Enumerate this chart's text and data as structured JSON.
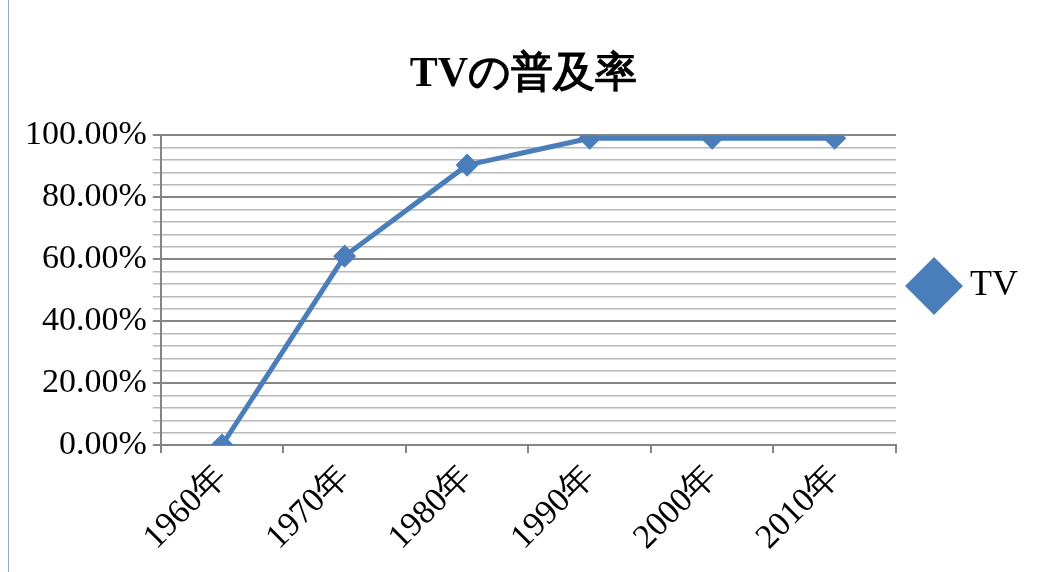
{
  "chart_data": {
    "type": "line",
    "title": "TVの普及率",
    "categories": [
      "1960年",
      "1970年",
      "1980年",
      "1990年",
      "2000年",
      "2010年"
    ],
    "series": [
      {
        "name": "TV",
        "color": "#4a7ebb",
        "values": [
          0,
          61,
          90.4,
          99.1,
          99.1,
          99.1
        ]
      }
    ],
    "ylim": [
      0,
      100
    ],
    "yticks": [
      {
        "value": 0,
        "label": "0.00%"
      },
      {
        "value": 4,
        "label": null
      },
      {
        "value": 8,
        "label": null
      },
      {
        "value": 12,
        "label": null
      },
      {
        "value": 16,
        "label": null
      },
      {
        "value": 20,
        "label": "20.00%"
      },
      {
        "value": 24,
        "label": null
      },
      {
        "value": 28,
        "label": null
      },
      {
        "value": 32,
        "label": null
      },
      {
        "value": 36,
        "label": null
      },
      {
        "value": 40,
        "label": "40.00%"
      },
      {
        "value": 44,
        "label": null
      },
      {
        "value": 48,
        "label": null
      },
      {
        "value": 52,
        "label": null
      },
      {
        "value": 56,
        "label": null
      },
      {
        "value": 60,
        "label": "60.00%"
      },
      {
        "value": 64,
        "label": null
      },
      {
        "value": 68,
        "label": null
      },
      {
        "value": 72,
        "label": null
      },
      {
        "value": 76,
        "label": null
      },
      {
        "value": 80,
        "label": "80.00%"
      },
      {
        "value": 84,
        "label": null
      },
      {
        "value": 88,
        "label": null
      },
      {
        "value": 92,
        "label": null
      },
      {
        "value": 96,
        "label": null
      },
      {
        "value": 100,
        "label": "100.00%"
      }
    ],
    "grid": "y",
    "legend": "right",
    "marker": "diamond",
    "line_style": "solid"
  }
}
